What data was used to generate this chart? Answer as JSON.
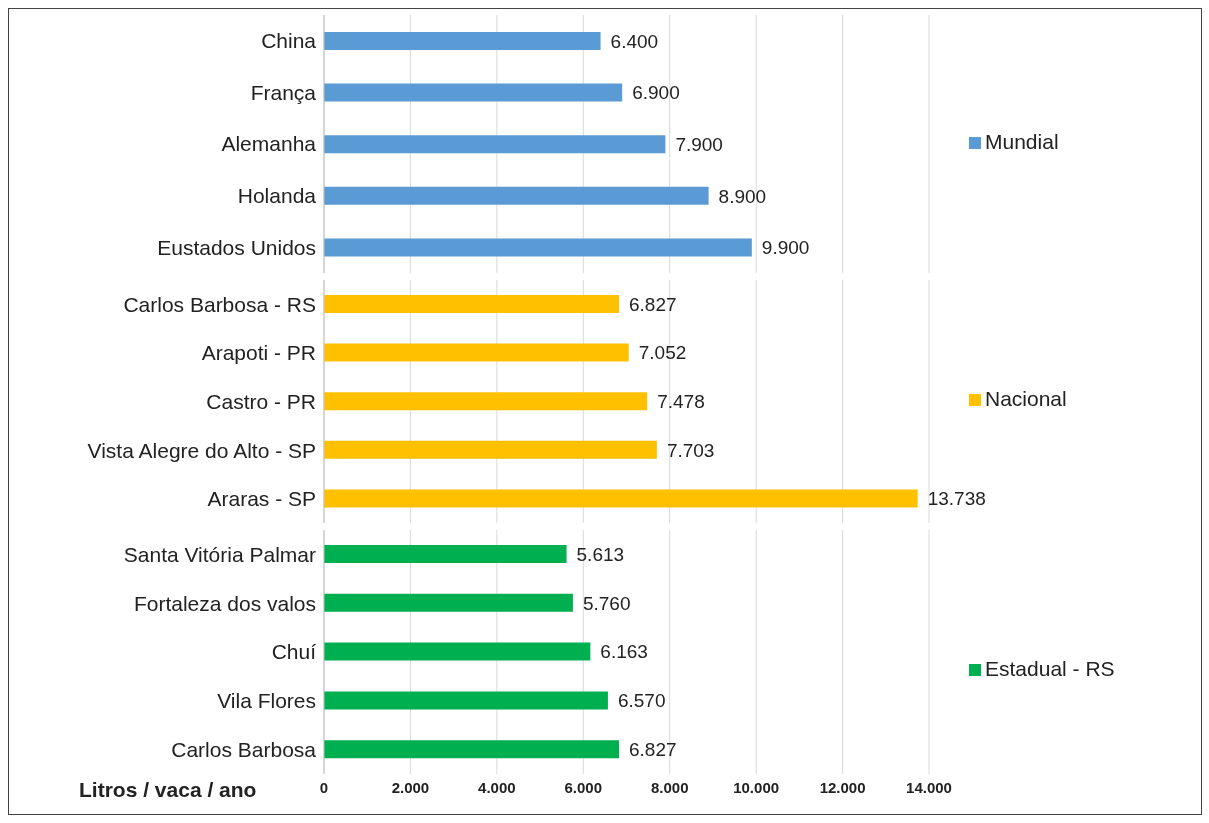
{
  "chart_data": [
    {
      "type": "bar",
      "orientation": "horizontal",
      "categories": [
        "China",
        "França",
        "Alemanha",
        "Holanda",
        "Eustados Unidos"
      ],
      "series": [
        {
          "name": "Mundial",
          "color": "#5b9bd5",
          "values": [
            6400,
            6900,
            7900,
            8900,
            9900
          ],
          "value_labels": [
            "6.400",
            "6.900",
            "7.900",
            "8.900",
            "9.900"
          ]
        }
      ],
      "xlim": [
        0,
        14000
      ],
      "xticks": [
        {
          "value": 0,
          "label": null
        },
        {
          "value": 2000,
          "label": null
        },
        {
          "value": 4000,
          "label": null
        },
        {
          "value": 6000,
          "label": null
        },
        {
          "value": 8000,
          "label": null
        },
        {
          "value": 10000,
          "label": null
        },
        {
          "value": 12000,
          "label": null
        },
        {
          "value": 14000,
          "label": null
        }
      ],
      "grid": "x",
      "legend": "right",
      "tick_labels": "y"
    },
    {
      "type": "bar",
      "orientation": "horizontal",
      "categories": [
        "Carlos Barbosa - RS",
        "Arapoti - PR",
        "Castro - PR",
        "Vista Alegre do Alto - SP",
        "Araras - SP"
      ],
      "series": [
        {
          "name": "Nacional",
          "color": "#ffc000",
          "values": [
            6827,
            7052,
            7478,
            7703,
            13738
          ],
          "value_labels": [
            "6.827",
            "7.052",
            "7.478",
            "7.703",
            "13.738"
          ]
        }
      ],
      "xlim": [
        0,
        14000
      ],
      "xticks": [
        {
          "value": 0,
          "label": null
        },
        {
          "value": 2000,
          "label": null
        },
        {
          "value": 4000,
          "label": null
        },
        {
          "value": 6000,
          "label": null
        },
        {
          "value": 8000,
          "label": null
        },
        {
          "value": 10000,
          "label": null
        },
        {
          "value": 12000,
          "label": null
        },
        {
          "value": 14000,
          "label": null
        }
      ],
      "grid": "x",
      "legend": "right",
      "tick_labels": "y"
    },
    {
      "type": "bar",
      "orientation": "horizontal",
      "categories": [
        "Santa Vitória Palmar",
        "Fortaleza dos valos",
        "Chuí",
        "Vila Flores",
        "Carlos Barbosa"
      ],
      "series": [
        {
          "name": "Estadual - RS",
          "color": "#00b050",
          "values": [
            5613,
            5760,
            6163,
            6570,
            6827
          ],
          "value_labels": [
            "5.613",
            "5.760",
            "6.163",
            "6.570",
            "6.827"
          ]
        }
      ],
      "xlabel": "Litros / vaca / ano",
      "xlim": [
        0,
        14000
      ],
      "xticks": [
        {
          "value": 0,
          "label": "0"
        },
        {
          "value": 2000,
          "label": "2.000"
        },
        {
          "value": 4000,
          "label": "4.000"
        },
        {
          "value": 6000,
          "label": "6.000"
        },
        {
          "value": 8000,
          "label": "8.000"
        },
        {
          "value": 10000,
          "label": "10.000"
        },
        {
          "value": 12000,
          "label": "12.000"
        },
        {
          "value": 14000,
          "label": "14.000"
        }
      ],
      "grid": "x",
      "legend": "right"
    }
  ]
}
